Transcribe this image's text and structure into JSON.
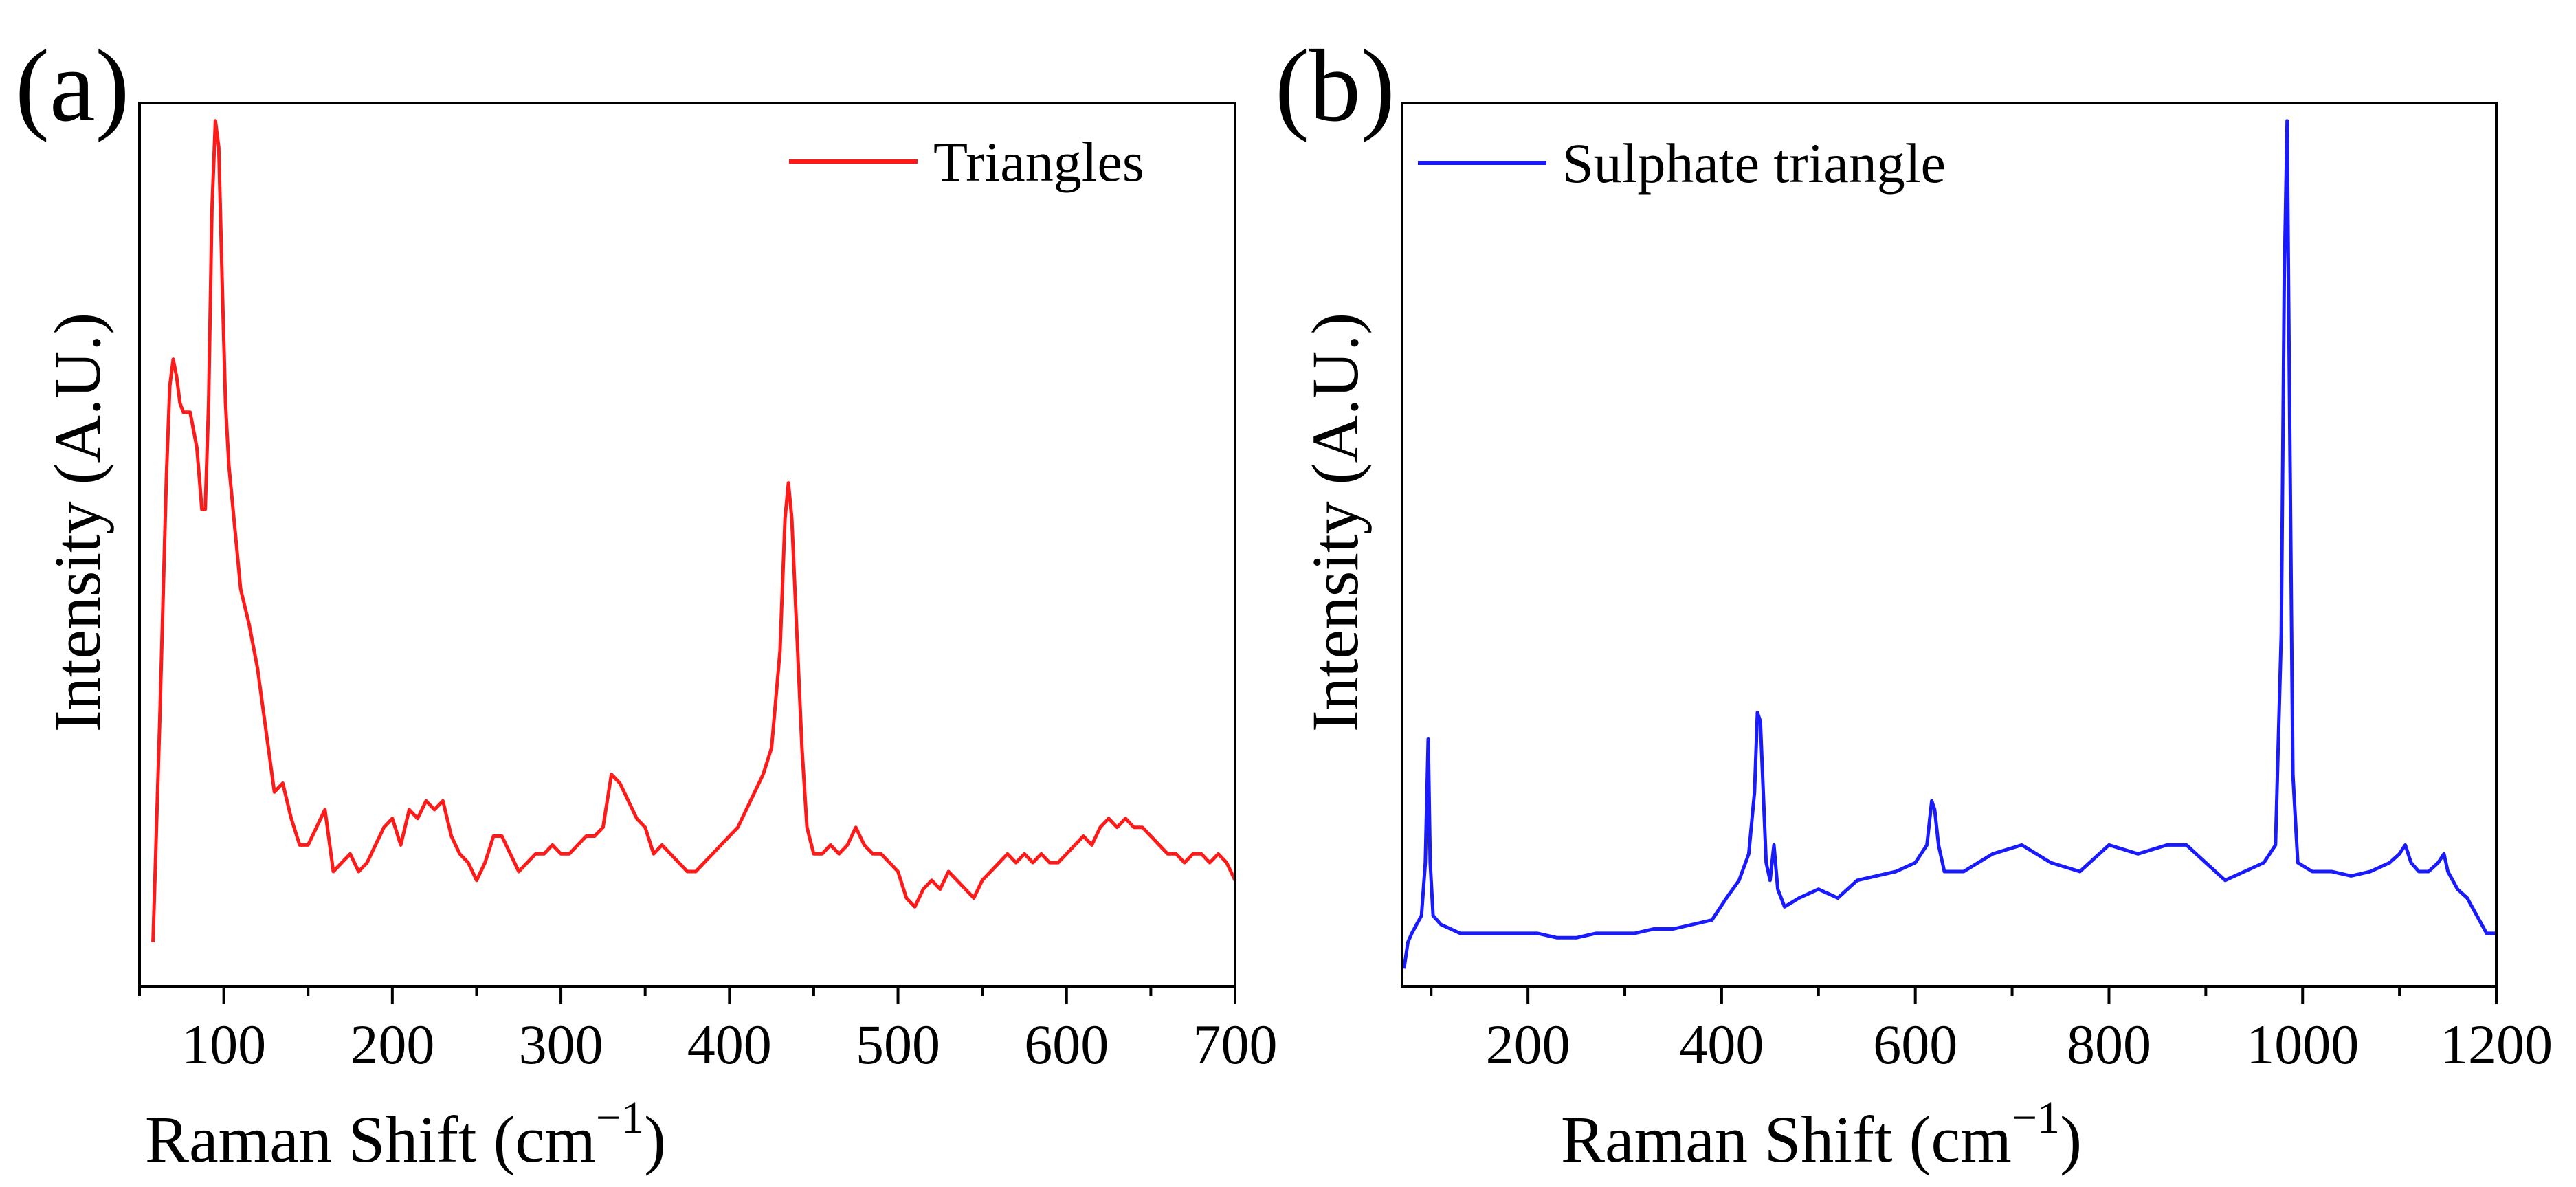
{
  "chart_data": [
    {
      "type": "line",
      "panel_label": "(a)",
      "xlabel": "Raman Shift (cm",
      "xlabel_sup": "−1",
      "xlabel_close": ")",
      "ylabel": "Intensity (A.U.)",
      "xlim": [
        50,
        700
      ],
      "ylim": [
        0,
        100
      ],
      "x_ticks": [
        100,
        200,
        300,
        400,
        500,
        600,
        700
      ],
      "x_tick_labels": [
        "100",
        "200",
        "300",
        "400",
        "500",
        "600",
        "700"
      ],
      "y_ticks_shown": false,
      "grid": false,
      "legend_position": "top-right",
      "series": [
        {
          "name": "Triangles",
          "color": "#ff1a1a",
          "points": [
            [
              58,
              5
            ],
            [
              62,
              30
            ],
            [
              66,
              58
            ],
            [
              68,
              68
            ],
            [
              70,
              71
            ],
            [
              72,
              69
            ],
            [
              74,
              66
            ],
            [
              76,
              65
            ],
            [
              80,
              65
            ],
            [
              84,
              61
            ],
            [
              87,
              54
            ],
            [
              89,
              54
            ],
            [
              91,
              66
            ],
            [
              93,
              88
            ],
            [
              95,
              98
            ],
            [
              97,
              95
            ],
            [
              99,
              80
            ],
            [
              101,
              66
            ],
            [
              103,
              59
            ],
            [
              106,
              53
            ],
            [
              110,
              45
            ],
            [
              115,
              41
            ],
            [
              120,
              36
            ],
            [
              125,
              29
            ],
            [
              130,
              22
            ],
            [
              135,
              23
            ],
            [
              140,
              19
            ],
            [
              145,
              16
            ],
            [
              150,
              16
            ],
            [
              155,
              18
            ],
            [
              160,
              20
            ],
            [
              165,
              13
            ],
            [
              170,
              14
            ],
            [
              175,
              15
            ],
            [
              180,
              13
            ],
            [
              185,
              14
            ],
            [
              190,
              16
            ],
            [
              195,
              18
            ],
            [
              200,
              19
            ],
            [
              205,
              16
            ],
            [
              210,
              20
            ],
            [
              215,
              19
            ],
            [
              220,
              21
            ],
            [
              225,
              20
            ],
            [
              230,
              21
            ],
            [
              235,
              17
            ],
            [
              240,
              15
            ],
            [
              245,
              14
            ],
            [
              250,
              12
            ],
            [
              255,
              14
            ],
            [
              260,
              17
            ],
            [
              265,
              17
            ],
            [
              270,
              15
            ],
            [
              275,
              13
            ],
            [
              280,
              14
            ],
            [
              285,
              15
            ],
            [
              290,
              15
            ],
            [
              295,
              16
            ],
            [
              300,
              15
            ],
            [
              305,
              15
            ],
            [
              310,
              16
            ],
            [
              315,
              17
            ],
            [
              320,
              17
            ],
            [
              325,
              18
            ],
            [
              330,
              24
            ],
            [
              335,
              23
            ],
            [
              340,
              21
            ],
            [
              345,
              19
            ],
            [
              350,
              18
            ],
            [
              355,
              15
            ],
            [
              360,
              16
            ],
            [
              365,
              15
            ],
            [
              370,
              14
            ],
            [
              375,
              13
            ],
            [
              380,
              13
            ],
            [
              385,
              14
            ],
            [
              390,
              15
            ],
            [
              395,
              16
            ],
            [
              400,
              17
            ],
            [
              405,
              18
            ],
            [
              410,
              20
            ],
            [
              415,
              22
            ],
            [
              420,
              24
            ],
            [
              425,
              27
            ],
            [
              430,
              38
            ],
            [
              433,
              53
            ],
            [
              435,
              57
            ],
            [
              437,
              53
            ],
            [
              440,
              40
            ],
            [
              443,
              27
            ],
            [
              446,
              18
            ],
            [
              450,
              15
            ],
            [
              455,
              15
            ],
            [
              460,
              16
            ],
            [
              465,
              15
            ],
            [
              470,
              16
            ],
            [
              475,
              18
            ],
            [
              480,
              16
            ],
            [
              485,
              15
            ],
            [
              490,
              15
            ],
            [
              495,
              14
            ],
            [
              500,
              13
            ],
            [
              505,
              10
            ],
            [
              510,
              9
            ],
            [
              515,
              11
            ],
            [
              520,
              12
            ],
            [
              525,
              11
            ],
            [
              530,
              13
            ],
            [
              535,
              12
            ],
            [
              540,
              11
            ],
            [
              545,
              10
            ],
            [
              550,
              12
            ],
            [
              555,
              13
            ],
            [
              560,
              14
            ],
            [
              565,
              15
            ],
            [
              570,
              14
            ],
            [
              575,
              15
            ],
            [
              580,
              14
            ],
            [
              585,
              15
            ],
            [
              590,
              14
            ],
            [
              595,
              14
            ],
            [
              600,
              15
            ],
            [
              605,
              16
            ],
            [
              610,
              17
            ],
            [
              615,
              16
            ],
            [
              620,
              18
            ],
            [
              625,
              19
            ],
            [
              630,
              18
            ],
            [
              635,
              19
            ],
            [
              640,
              18
            ],
            [
              645,
              18
            ],
            [
              650,
              17
            ],
            [
              655,
              16
            ],
            [
              660,
              15
            ],
            [
              665,
              15
            ],
            [
              670,
              14
            ],
            [
              675,
              15
            ],
            [
              680,
              15
            ],
            [
              685,
              14
            ],
            [
              690,
              15
            ],
            [
              695,
              14
            ],
            [
              700,
              12
            ]
          ]
        }
      ]
    },
    {
      "type": "line",
      "panel_label": "(b)",
      "xlabel": "Raman Shift (cm",
      "xlabel_sup": "−1",
      "xlabel_close": ")",
      "ylabel": "Intensity (A.U.)",
      "xlim": [
        70,
        1200
      ],
      "ylim": [
        0,
        100
      ],
      "x_ticks": [
        200,
        400,
        600,
        800,
        1000,
        1200
      ],
      "x_tick_labels": [
        "200",
        "400",
        "600",
        "800",
        "1000",
        "1200"
      ],
      "y_ticks_shown": false,
      "grid": false,
      "legend_position": "top-left",
      "series": [
        {
          "name": "Sulphate triangle",
          "color": "#1a1aff",
          "points": [
            [
              72,
              2
            ],
            [
              76,
              5
            ],
            [
              80,
              6
            ],
            [
              85,
              7
            ],
            [
              90,
              8
            ],
            [
              94,
              14
            ],
            [
              97,
              28
            ],
            [
              99,
              14
            ],
            [
              102,
              8
            ],
            [
              110,
              7
            ],
            [
              130,
              6
            ],
            [
              150,
              6
            ],
            [
              170,
              6
            ],
            [
              190,
              6
            ],
            [
              210,
              6
            ],
            [
              230,
              5.5
            ],
            [
              250,
              5.5
            ],
            [
              270,
              6
            ],
            [
              290,
              6
            ],
            [
              310,
              6
            ],
            [
              330,
              6.5
            ],
            [
              350,
              6.5
            ],
            [
              370,
              7
            ],
            [
              390,
              7.5
            ],
            [
              405,
              10
            ],
            [
              418,
              12
            ],
            [
              428,
              15
            ],
            [
              434,
              22
            ],
            [
              437,
              31
            ],
            [
              440,
              30
            ],
            [
              443,
              22
            ],
            [
              446,
              14
            ],
            [
              450,
              12
            ],
            [
              454,
              16
            ],
            [
              458,
              11
            ],
            [
              465,
              9
            ],
            [
              480,
              10
            ],
            [
              500,
              11
            ],
            [
              520,
              10
            ],
            [
              540,
              12
            ],
            [
              560,
              12.5
            ],
            [
              580,
              13
            ],
            [
              600,
              14
            ],
            [
              612,
              16
            ],
            [
              617,
              21
            ],
            [
              620,
              20
            ],
            [
              624,
              16
            ],
            [
              630,
              13
            ],
            [
              650,
              13
            ],
            [
              680,
              15
            ],
            [
              710,
              16
            ],
            [
              740,
              14
            ],
            [
              770,
              13
            ],
            [
              800,
              16
            ],
            [
              830,
              15
            ],
            [
              860,
              16
            ],
            [
              880,
              16
            ],
            [
              900,
              14
            ],
            [
              920,
              12
            ],
            [
              940,
              13
            ],
            [
              960,
              14
            ],
            [
              972,
              16
            ],
            [
              978,
              40
            ],
            [
              981,
              80
            ],
            [
              984,
              98
            ],
            [
              987,
              60
            ],
            [
              990,
              24
            ],
            [
              995,
              14
            ],
            [
              1010,
              13
            ],
            [
              1030,
              13
            ],
            [
              1050,
              12.5
            ],
            [
              1070,
              13
            ],
            [
              1090,
              14
            ],
            [
              1100,
              15
            ],
            [
              1106,
              16
            ],
            [
              1112,
              14
            ],
            [
              1120,
              13
            ],
            [
              1130,
              13
            ],
            [
              1140,
              14
            ],
            [
              1146,
              15
            ],
            [
              1150,
              13
            ],
            [
              1160,
              11
            ],
            [
              1170,
              10
            ],
            [
              1180,
              8
            ],
            [
              1190,
              6
            ],
            [
              1200,
              6
            ]
          ]
        }
      ]
    }
  ]
}
